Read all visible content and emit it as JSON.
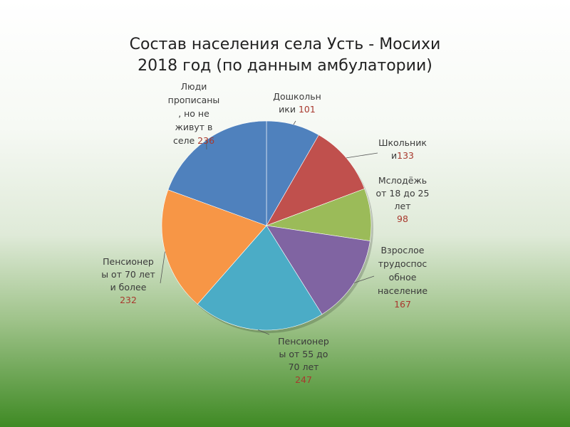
{
  "chart_data": {
    "type": "pie",
    "title": "Состав населения села Усть - Мосихи",
    "subtitle": "2018 год (по данным амбулатории)",
    "slices": [
      {
        "label": "Дошкольники",
        "value": 101,
        "color": "#4f81bd",
        "label_lines": [
          "Дошкольн",
          "ики"
        ]
      },
      {
        "label": "Школьники",
        "value": 133,
        "color": "#c0504d",
        "label_lines": [
          "Школьник",
          "и"
        ]
      },
      {
        "label": "Мслодёжь от 18 до 25 лет",
        "value": 98,
        "color": "#9bbb59",
        "label_lines": [
          "Мслодёжь",
          "от 18 до 25",
          "лет"
        ]
      },
      {
        "label": "Взрослое трудоспособное население",
        "value": 167,
        "color": "#8064a2",
        "label_lines": [
          "Взрослое",
          "трудоспос",
          "обное",
          "население"
        ]
      },
      {
        "label": "Пенсионеры от 55 до 70 лет",
        "value": 247,
        "color": "#4bacc6",
        "label_lines": [
          "Пенсионер",
          "ы от 55 до",
          "70 лет"
        ]
      },
      {
        "label": "Пенсионеры от 70 лет и более",
        "value": 232,
        "color": "#f79646",
        "label_lines": [
          "Пенсионер",
          "ы от 70 лет",
          "и более"
        ]
      },
      {
        "label": "Люди прописаны, но не живут в селе",
        "value": 236,
        "color": "#4f81bd",
        "label_lines": [
          "Люди",
          "прописаны",
          ", но не",
          "живут в",
          "селе"
        ]
      }
    ]
  }
}
